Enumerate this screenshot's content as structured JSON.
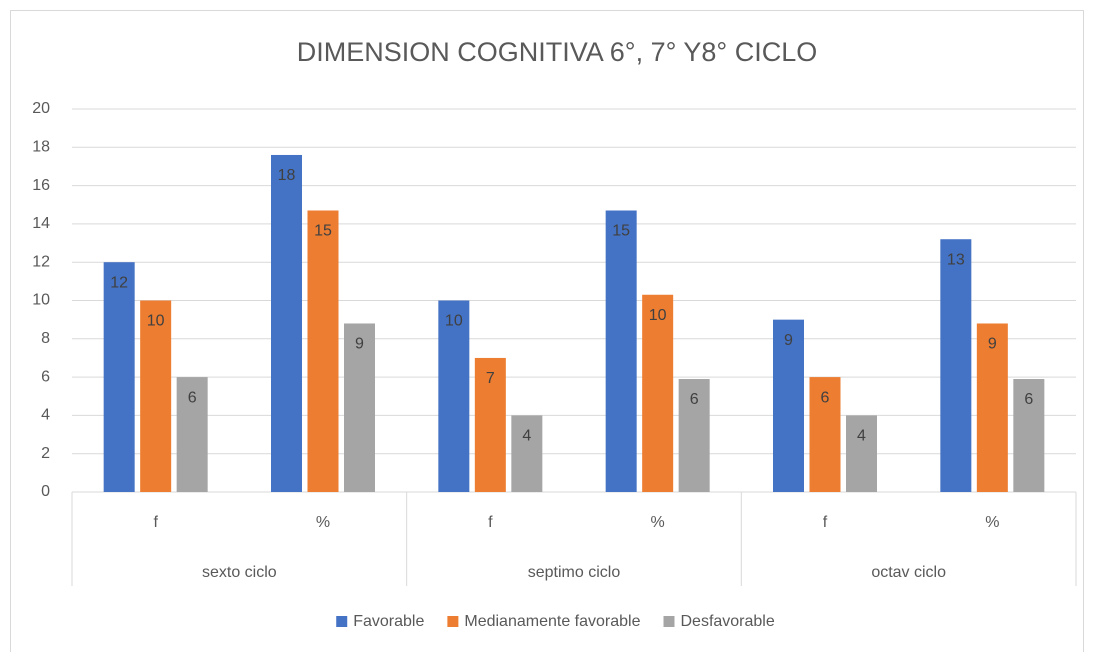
{
  "chart_data": {
    "type": "bar",
    "title": "DIMENSION COGNITIVA 6°, 7° Y8° CICLO",
    "categories": [
      "f",
      "%",
      "f",
      "%",
      "f",
      "%"
    ],
    "groups": [
      "sexto ciclo",
      "septimo ciclo",
      "octav ciclo"
    ],
    "series": [
      {
        "name": "Favorable",
        "color": "#4472c4",
        "values": [
          12,
          17.6,
          10,
          14.7,
          9,
          13.2
        ],
        "value_labels": [
          "12",
          "18",
          "10",
          "15",
          "9",
          "13"
        ]
      },
      {
        "name": "Medianamente favorable",
        "color": "#ed7d31",
        "values": [
          10,
          14.7,
          7,
          10.3,
          6,
          8.8
        ],
        "value_labels": [
          "10",
          "15",
          "7",
          "10",
          "6",
          "9"
        ]
      },
      {
        "name": "Desfavorable",
        "color": "#a5a5a5",
        "values": [
          6,
          8.8,
          4,
          5.9,
          4,
          5.9
        ],
        "value_labels": [
          "6",
          "9",
          "4",
          "6",
          "4",
          "6"
        ]
      }
    ],
    "ylim": [
      0,
      20
    ],
    "yticks": [
      0,
      2,
      4,
      6,
      8,
      10,
      12,
      14,
      16,
      18,
      20
    ],
    "grid": true,
    "legend": "bottom"
  }
}
